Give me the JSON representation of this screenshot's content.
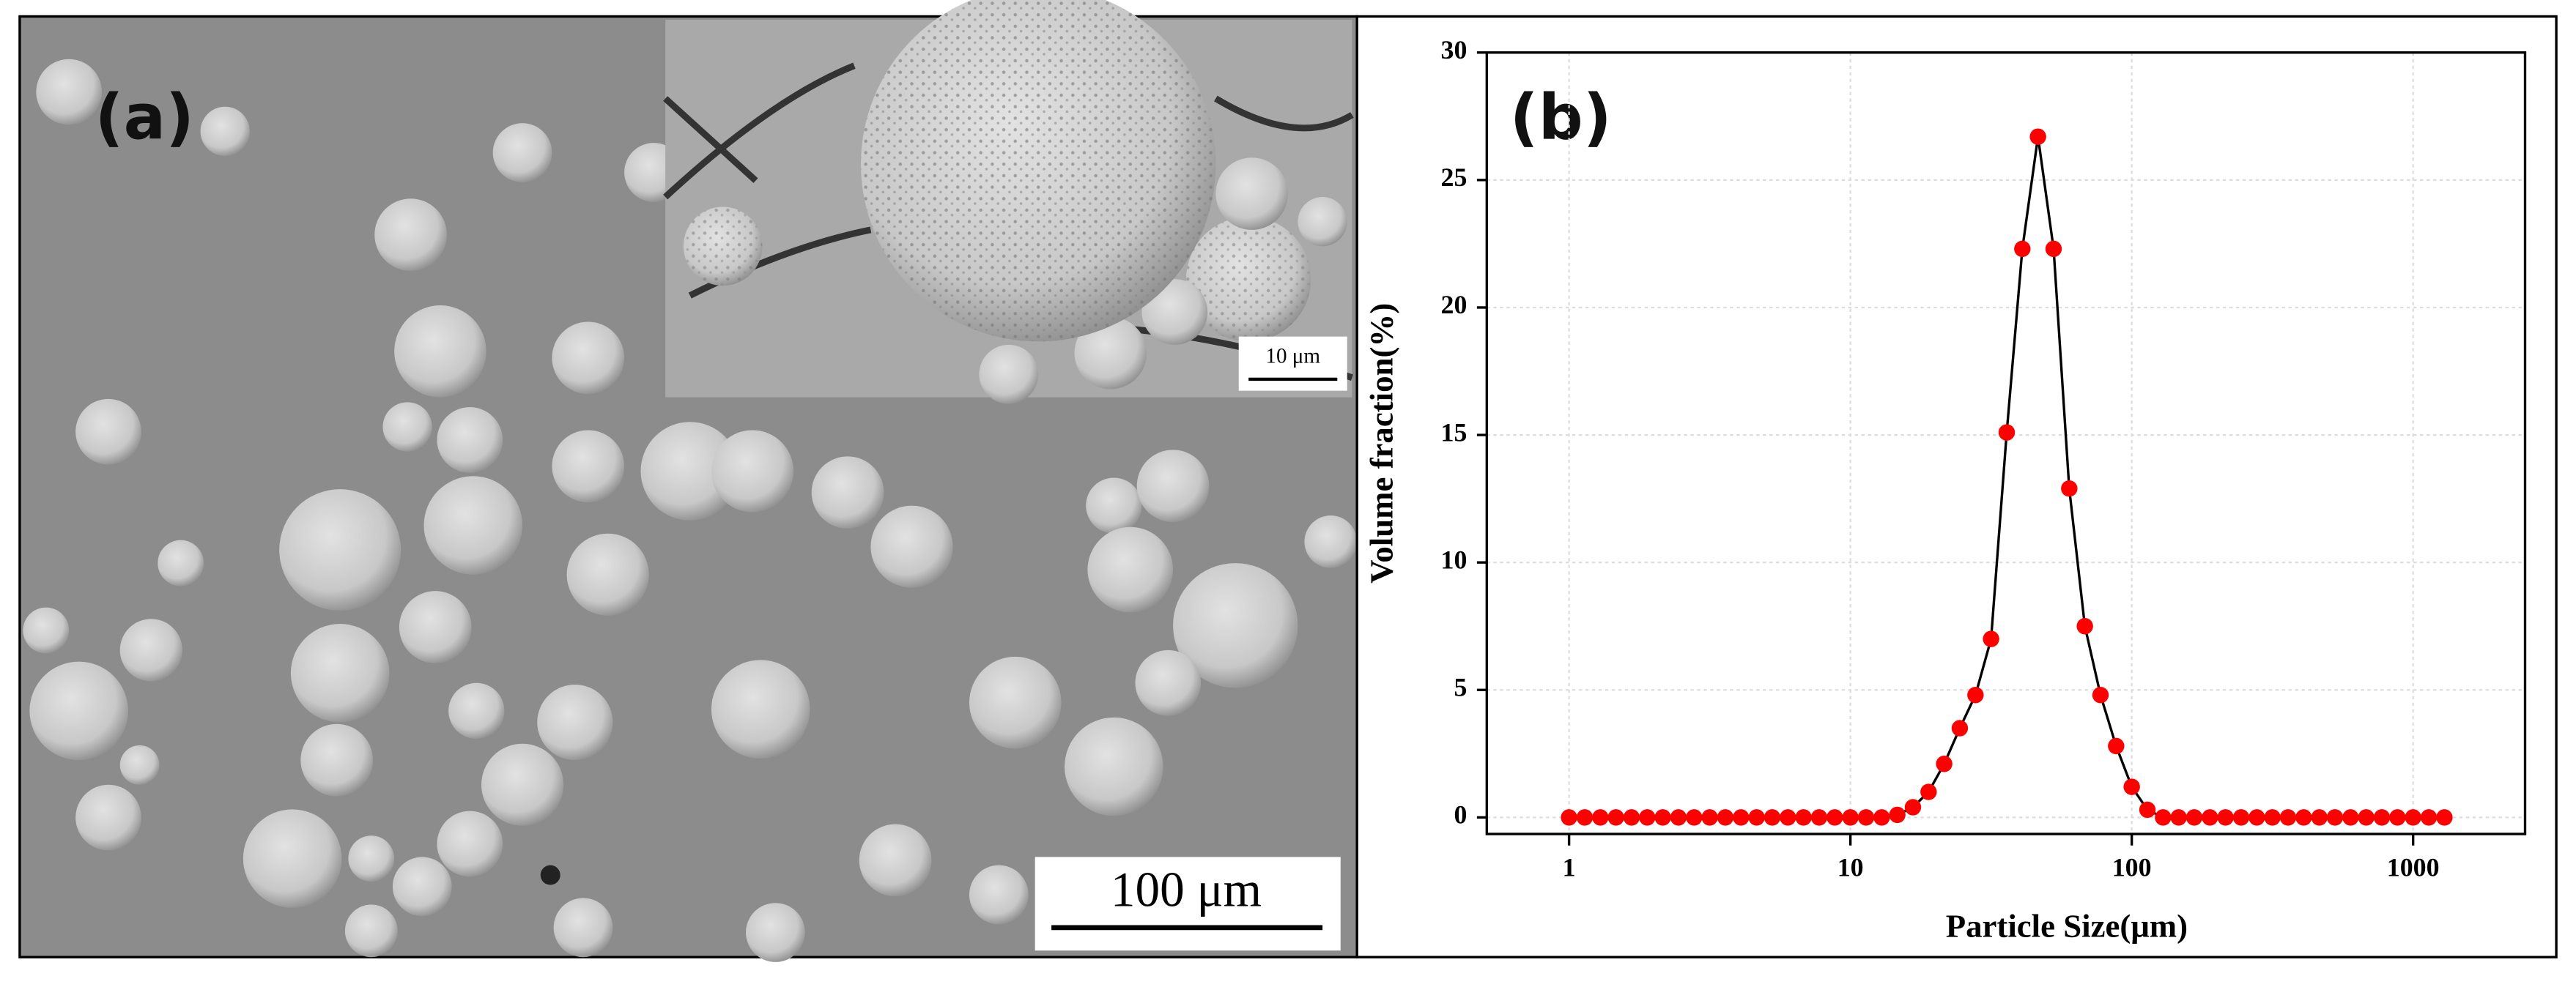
{
  "panel_a": {
    "label": "(a)",
    "inset_scale_bar": "10 μm",
    "scale_bar": "100 μm"
  },
  "chart_data": {
    "type": "line",
    "panel_label": "(b)",
    "xlabel": "Particle Size(μm)",
    "ylabel": "Volume fraction(%)",
    "x": [
      1,
      1.137,
      1.292,
      1.468,
      1.668,
      1.896,
      2.154,
      2.448,
      2.783,
      3.162,
      3.594,
      4.084,
      4.642,
      5.275,
      5.995,
      6.813,
      7.743,
      8.799,
      10,
      11.37,
      12.92,
      14.68,
      16.68,
      18.96,
      21.54,
      24.48,
      27.83,
      31.62,
      35.94,
      40.84,
      46.42,
      52.75,
      59.95,
      68.13,
      77.43,
      87.99,
      100,
      113.7,
      129.2,
      146.8,
      166.8,
      189.6,
      215.4,
      244.8,
      278.3,
      316.2,
      359.4,
      408.4,
      464.2,
      527.5,
      599.5,
      681.3,
      774.3,
      879.9,
      1000,
      1137,
      1292
    ],
    "values": [
      0,
      0,
      0,
      0,
      0,
      0,
      0,
      0,
      0,
      0,
      0,
      0,
      0,
      0,
      0,
      0,
      0,
      0,
      0,
      0,
      0,
      0.1,
      0.4,
      1.0,
      2.1,
      3.5,
      4.8,
      7.0,
      15.1,
      22.3,
      26.7,
      22.3,
      12.9,
      7.5,
      4.8,
      2.8,
      1.2,
      0.3,
      0,
      0,
      0,
      0,
      0,
      0,
      0,
      0,
      0,
      0,
      0,
      0,
      0,
      0,
      0,
      0,
      0,
      0,
      0
    ],
    "color": "#ff0000",
    "line_color": "#000000",
    "xscale": "log",
    "xlim": [
      0.51,
      2500
    ],
    "xticks": [
      1,
      10,
      100,
      1000
    ],
    "ylim": [
      -0.65,
      30
    ],
    "yticks": [
      0,
      5,
      10,
      15,
      20,
      25,
      30
    ],
    "grid": true
  }
}
